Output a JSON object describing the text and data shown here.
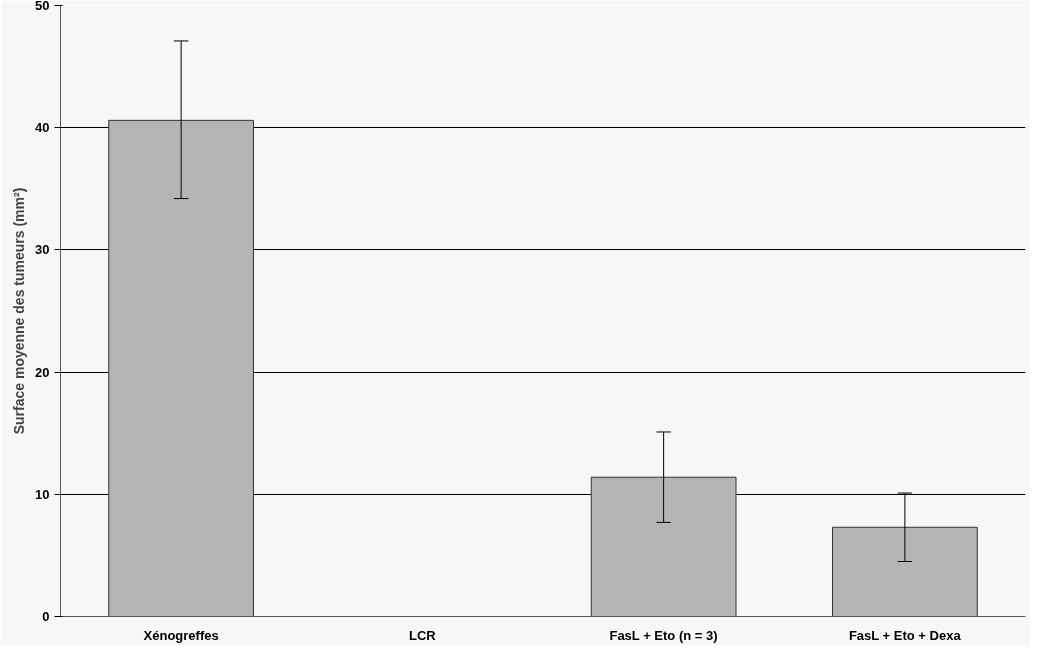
{
  "chart_data": {
    "type": "bar",
    "ylabel": "Surface moyenne des tumeurs (mm²)",
    "categories": [
      "Xénogreffes",
      "LCR",
      "FasL + Eto (n = 3)",
      "FasL + Eto + Dexa"
    ],
    "values": [
      40.6,
      null,
      11.4,
      7.3
    ],
    "errors": [
      [
        34.2,
        47.1
      ],
      null,
      [
        7.7,
        15.1
      ],
      [
        4.5,
        10.1
      ]
    ],
    "color": "#b4b4b4",
    "ylim": [
      0,
      50
    ],
    "yticks": [
      0,
      10,
      20,
      30,
      40,
      50
    ],
    "grid": "y"
  }
}
